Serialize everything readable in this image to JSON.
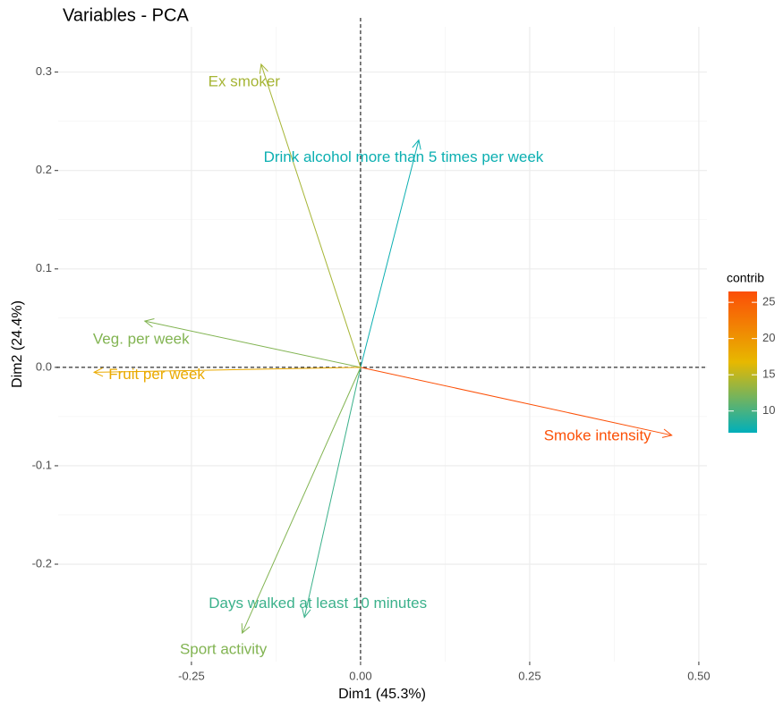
{
  "chart_data": {
    "type": "vector",
    "title": "Variables - PCA",
    "xlabel": "Dim1 (45.3%)",
    "ylabel": "Dim2 (24.4%)",
    "xlim": [
      -0.447,
      0.512
    ],
    "ylim": [
      -0.299,
      0.346
    ],
    "xticks": [
      -0.25,
      {
        "value": 0,
        "label": "0.00"
      },
      0.25,
      {
        "value": 0.5,
        "label": "0.50"
      }
    ],
    "yticks": [
      -0.2,
      -0.1,
      {
        "value": 0,
        "label": "0.0"
      },
      0.1,
      0.2,
      0.3
    ],
    "grid": true,
    "categories": [
      "Ex smoker",
      "Drink alcohol more than 5 times per week",
      "Veg. per week",
      "Fruit per week",
      "Smoke intensity",
      "Days walked at least 10 minutes",
      "Sport activity"
    ],
    "x": [
      -0.147,
      0.086,
      -0.319,
      -0.394,
      0.46,
      -0.083,
      -0.175
    ],
    "values": [
      0.308,
      0.231,
      0.047,
      -0.005,
      -0.069,
      -0.254,
      -0.27
    ],
    "contrib": [
      14,
      7.5,
      12.5,
      18,
      26.3,
      9.5,
      12.5
    ],
    "legend": {
      "title": "contrib",
      "lim": [
        7.0,
        26.5
      ],
      "ticks": [
        10,
        15,
        20,
        25
      ],
      "colors": [
        "#00AFBB",
        "#E7B800",
        "#FC4E07"
      ]
    }
  }
}
